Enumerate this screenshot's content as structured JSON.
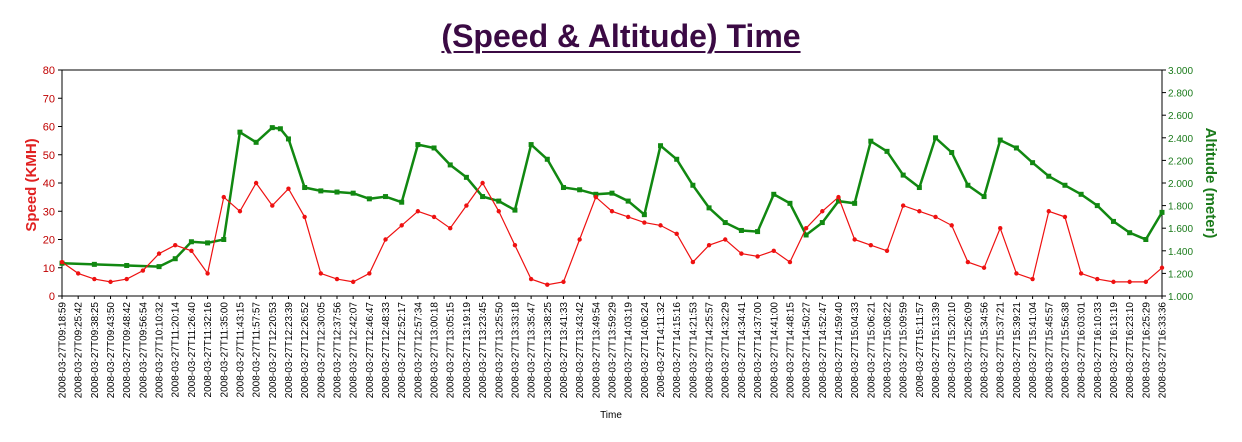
{
  "chart_data": {
    "type": "line",
    "title": "(Speed & Altitude) Time",
    "xlabel": "Time",
    "ylabel": "Speed (KMH)",
    "y2label": "Altitude (meter)",
    "ylim": [
      0,
      80
    ],
    "y2lim": [
      1000,
      3000
    ],
    "yticks": [
      "0",
      "10",
      "20",
      "30",
      "40",
      "50",
      "60",
      "70",
      "80"
    ],
    "y2ticks": [
      "1.000",
      "1.200",
      "1.400",
      "1.600",
      "1.800",
      "2.000",
      "2.200",
      "2.400",
      "2.600",
      "2.800",
      "3.000"
    ],
    "grid": false,
    "colors": {
      "speed": "#ee1111",
      "altitude": "#118811",
      "title": "#3b0a44"
    },
    "x_tick_labels": [
      "2008-03-27T09:18:59",
      "2008-03-27T09:25:42",
      "2008-03-27T09:38:25",
      "2008-03-27T09:43:50",
      "2008-03-27T09:48:42",
      "2008-03-27T09:56:54",
      "2008-03-27T10:10:32",
      "2008-03-27T11:20:14",
      "2008-03-27T11:26:40",
      "2008-03-27T11:32:16",
      "2008-03-27T11:35:00",
      "2008-03-27T11:43:15",
      "2008-03-27T11:57:57",
      "2008-03-27T12:20:53",
      "2008-03-27T12:23:39",
      "2008-03-27T12:26:52",
      "2008-03-27T12:30:05",
      "2008-03-27T12:37:56",
      "2008-03-27T12:42:07",
      "2008-03-27T12:46:47",
      "2008-03-27T12:48:33",
      "2008-03-27T12:52:17",
      "2008-03-27T12:57:34",
      "2008-03-27T13:00:18",
      "2008-03-27T13:05:15",
      "2008-03-27T13:19:19",
      "2008-03-27T13:23:45",
      "2008-03-27T13:25:50",
      "2008-03-27T13:33:18",
      "2008-03-27T13:35:47",
      "2008-03-27T13:38:25",
      "2008-03-27T13:41:33",
      "2008-03-27T13:43:42",
      "2008-03-27T13:49:54",
      "2008-03-27T13:59:29",
      "2008-03-27T14:03:19",
      "2008-03-27T14:06:24",
      "2008-03-27T14:11:32",
      "2008-03-27T14:15:16",
      "2008-03-27T14:21:53",
      "2008-03-27T14:25:57",
      "2008-03-27T14:32:29",
      "2008-03-27T14:34:41",
      "2008-03-27T14:37:00",
      "2008-03-27T14:41:00",
      "2008-03-27T14:48:15",
      "2008-03-27T14:50:27",
      "2008-03-27T14:52:47",
      "2008-03-27T14:59:40",
      "2008-03-27T15:04:33",
      "2008-03-27T15:06:21",
      "2008-03-27T15:08:22",
      "2008-03-27T15:09:59",
      "2008-03-27T15:11:57",
      "2008-03-27T15:13:39",
      "2008-03-27T15:20:10",
      "2008-03-27T15:26:09",
      "2008-03-27T15:34:56",
      "2008-03-27T15:37:21",
      "2008-03-27T15:39:21",
      "2008-03-27T15:41:04",
      "2008-03-27T15:45:57",
      "2008-03-27T15:56:38",
      "2008-03-27T16:03:01",
      "2008-03-27T16:10:33",
      "2008-03-27T16:13:19",
      "2008-03-27T16:23:10",
      "2008-03-27T16:25:29",
      "2008-03-27T16:33:36"
    ],
    "series": [
      {
        "name": "Altitude (meter)",
        "axis": "right",
        "x": [
          0,
          2,
          4,
          6,
          7,
          8,
          9,
          10,
          11,
          12,
          13,
          13.5,
          14,
          15,
          16,
          17,
          18,
          19,
          20,
          21,
          22,
          23,
          24,
          25,
          26,
          27,
          28,
          29,
          30,
          31,
          32,
          33,
          34,
          35,
          36,
          37,
          38,
          39,
          40,
          41,
          42,
          43,
          44,
          45,
          46,
          47,
          48,
          49,
          50,
          51,
          52,
          53,
          54,
          55,
          56,
          57,
          58,
          59,
          60,
          61,
          62,
          63,
          64,
          65,
          66,
          67,
          68
        ],
        "values": [
          1290,
          1280,
          1270,
          1260,
          1330,
          1480,
          1470,
          1500,
          2450,
          2360,
          2490,
          2480,
          2390,
          1960,
          1930,
          1920,
          1910,
          1860,
          1880,
          1830,
          2340,
          2310,
          2160,
          2050,
          1880,
          1840,
          1760,
          2340,
          2210,
          1960,
          1940,
          1900,
          1910,
          1840,
          1720,
          2330,
          2210,
          1980,
          1780,
          1650,
          1580,
          1570,
          1900,
          1820,
          1540,
          1650,
          1840,
          1820,
          2370,
          2280,
          2070,
          1960,
          2400,
          2270,
          1980,
          1880,
          2380,
          2310,
          2180,
          2060,
          1980,
          1900,
          1800,
          1660,
          1560,
          1500,
          1740
        ]
      },
      {
        "name": "Speed (KMH)",
        "axis": "left",
        "x": [
          0,
          1,
          2,
          3,
          4,
          5,
          6,
          7,
          8,
          9,
          10,
          11,
          12,
          13,
          14,
          15,
          16,
          17,
          18,
          19,
          20,
          21,
          22,
          23,
          24,
          25,
          26,
          27,
          28,
          29,
          30,
          31,
          32,
          33,
          34,
          35,
          36,
          37,
          38,
          39,
          40,
          41,
          42,
          43,
          44,
          45,
          46,
          47,
          48,
          49,
          50,
          51,
          52,
          53,
          54,
          55,
          56,
          57,
          58,
          59,
          60,
          61,
          62,
          63,
          64,
          65,
          66,
          67,
          68
        ],
        "values": [
          12,
          8,
          6,
          5,
          6,
          9,
          15,
          18,
          16,
          8,
          35,
          30,
          40,
          32,
          38,
          28,
          8,
          6,
          5,
          8,
          20,
          25,
          30,
          28,
          24,
          32,
          40,
          30,
          18,
          6,
          4,
          5,
          20,
          35,
          30,
          28,
          26,
          25,
          22,
          12,
          18,
          20,
          15,
          14,
          16,
          12,
          24,
          30,
          35,
          20,
          18,
          16,
          32,
          30,
          28,
          25,
          12,
          10,
          24,
          8,
          6,
          30,
          28,
          8,
          6,
          5,
          5,
          5,
          10
        ]
      }
    ]
  }
}
